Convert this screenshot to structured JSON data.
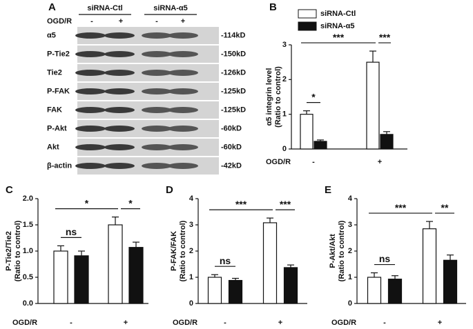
{
  "blot": {
    "panel": "A",
    "groups": [
      "siRNA-Ctl",
      "siRNA-α5"
    ],
    "condition": "OGD/R",
    "lanes": [
      "-",
      "+",
      "-",
      "+"
    ],
    "rows": [
      {
        "label": "α5",
        "size": "-114kD"
      },
      {
        "label": "P-Tie2",
        "size": "-150kD"
      },
      {
        "label": "Tie2",
        "size": "-126kD"
      },
      {
        "label": "P-FAK",
        "size": "-125kD"
      },
      {
        "label": "FAK",
        "size": "-125kD"
      },
      {
        "label": "P-Akt",
        "size": "-60kD"
      },
      {
        "label": "Akt",
        "size": "-60kD"
      },
      {
        "label": "β-actin",
        "size": "-42kD"
      }
    ]
  },
  "chart_data": [
    {
      "type": "bar",
      "panel": "B",
      "ylabel": [
        "α5 integrin level",
        "(Ratio to control)"
      ],
      "xlabel": "OGD/R",
      "categories": [
        "-",
        "+"
      ],
      "ylim": [
        0,
        3
      ],
      "yticks": [
        0,
        1,
        2,
        3
      ],
      "legend": "upper left",
      "series": [
        {
          "name": "siRNA-Ctl",
          "color": "#ffffff",
          "values": [
            1.0,
            2.5
          ],
          "errors": [
            0.1,
            0.32
          ]
        },
        {
          "name": "siRNA-α5",
          "color": "#111111",
          "values": [
            0.22,
            0.42
          ],
          "errors": [
            0.04,
            0.08
          ]
        }
      ],
      "annotations": [
        "*",
        "***",
        "***"
      ]
    },
    {
      "type": "bar",
      "panel": "C",
      "ylabel": [
        "P-Tie2/Tie2",
        "(Ratio to control)"
      ],
      "xlabel": "OGD/R",
      "categories": [
        "-",
        "+"
      ],
      "ylim": [
        0,
        2
      ],
      "yticks": [
        {
          "value": 0,
          "label": "0.0"
        },
        0.5,
        {
          "value": 1,
          "label": "1.0"
        },
        1.5,
        {
          "value": 2,
          "label": "2.0"
        }
      ],
      "series": [
        {
          "name": "siRNA-Ctl",
          "color": "#ffffff",
          "values": [
            1.0,
            1.5
          ],
          "errors": [
            0.1,
            0.15
          ]
        },
        {
          "name": "siRNA-α5",
          "color": "#111111",
          "values": [
            0.91,
            1.07
          ],
          "errors": [
            0.09,
            0.1
          ]
        }
      ],
      "annotations": [
        "ns",
        "*",
        "*"
      ]
    },
    {
      "type": "bar",
      "panel": "D",
      "ylabel": [
        "P-FAK/FAK",
        "(Ratio to control)"
      ],
      "xlabel": "OGD/R",
      "categories": [
        "-",
        "+"
      ],
      "ylim": [
        0,
        4
      ],
      "yticks": [
        0,
        1,
        2,
        3,
        4
      ],
      "series": [
        {
          "name": "siRNA-Ctl",
          "color": "#ffffff",
          "values": [
            1.0,
            3.08
          ],
          "errors": [
            0.1,
            0.18
          ]
        },
        {
          "name": "siRNA-α5",
          "color": "#111111",
          "values": [
            0.88,
            1.37
          ],
          "errors": [
            0.08,
            0.1
          ]
        }
      ],
      "annotations": [
        "ns",
        "***",
        "***"
      ]
    },
    {
      "type": "bar",
      "panel": "E",
      "ylabel": [
        "P-Akt/Akt",
        "(Ratio to control)"
      ],
      "xlabel": "OGD/R",
      "categories": [
        "-",
        "+"
      ],
      "ylim": [
        0,
        4
      ],
      "yticks": [
        0,
        1,
        2,
        3,
        4
      ],
      "series": [
        {
          "name": "siRNA-Ctl",
          "color": "#ffffff",
          "values": [
            1.0,
            2.85
          ],
          "errors": [
            0.17,
            0.28
          ]
        },
        {
          "name": "siRNA-α5",
          "color": "#111111",
          "values": [
            0.93,
            1.65
          ],
          "errors": [
            0.13,
            0.2
          ]
        }
      ],
      "annotations": [
        "ns",
        "***",
        "**"
      ]
    }
  ]
}
